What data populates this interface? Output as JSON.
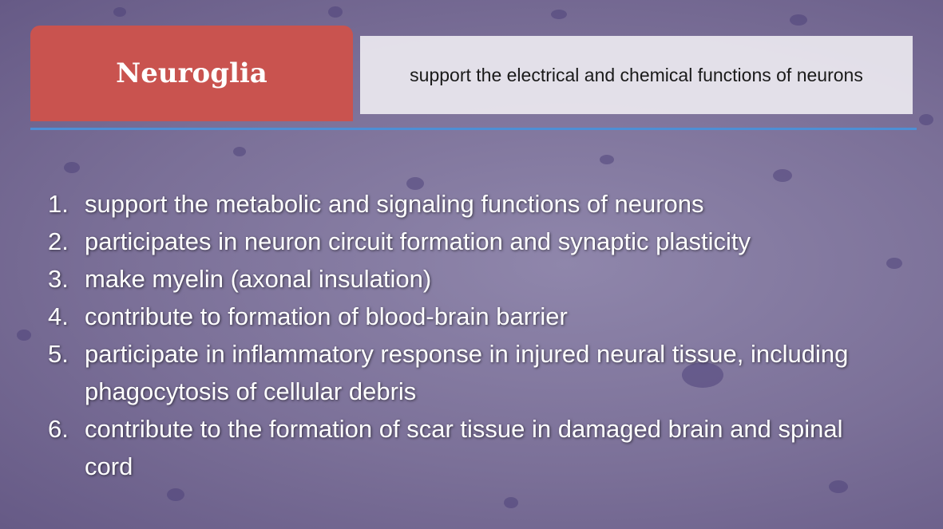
{
  "header": {
    "title": "Neuroglia",
    "subtitle": "support the electrical and chemical functions of neurons"
  },
  "list": [
    {
      "number": "1.",
      "text": "support the metabolic and signaling functions of neurons"
    },
    {
      "number": "2.",
      "text": "participates in neuron circuit formation and synaptic plasticity"
    },
    {
      "number": "3.",
      "text": "make myelin (axonal insulation)"
    },
    {
      "number": "4.",
      "text": "contribute to formation of blood-brain barrier"
    },
    {
      "number": "5.",
      "text": "participate in inflammatory response in injured neural tissue, including phagocytosis of cellular debris"
    },
    {
      "number": "6.",
      "text": "contribute to the formation of scar tissue in damaged brain and spinal cord"
    }
  ]
}
